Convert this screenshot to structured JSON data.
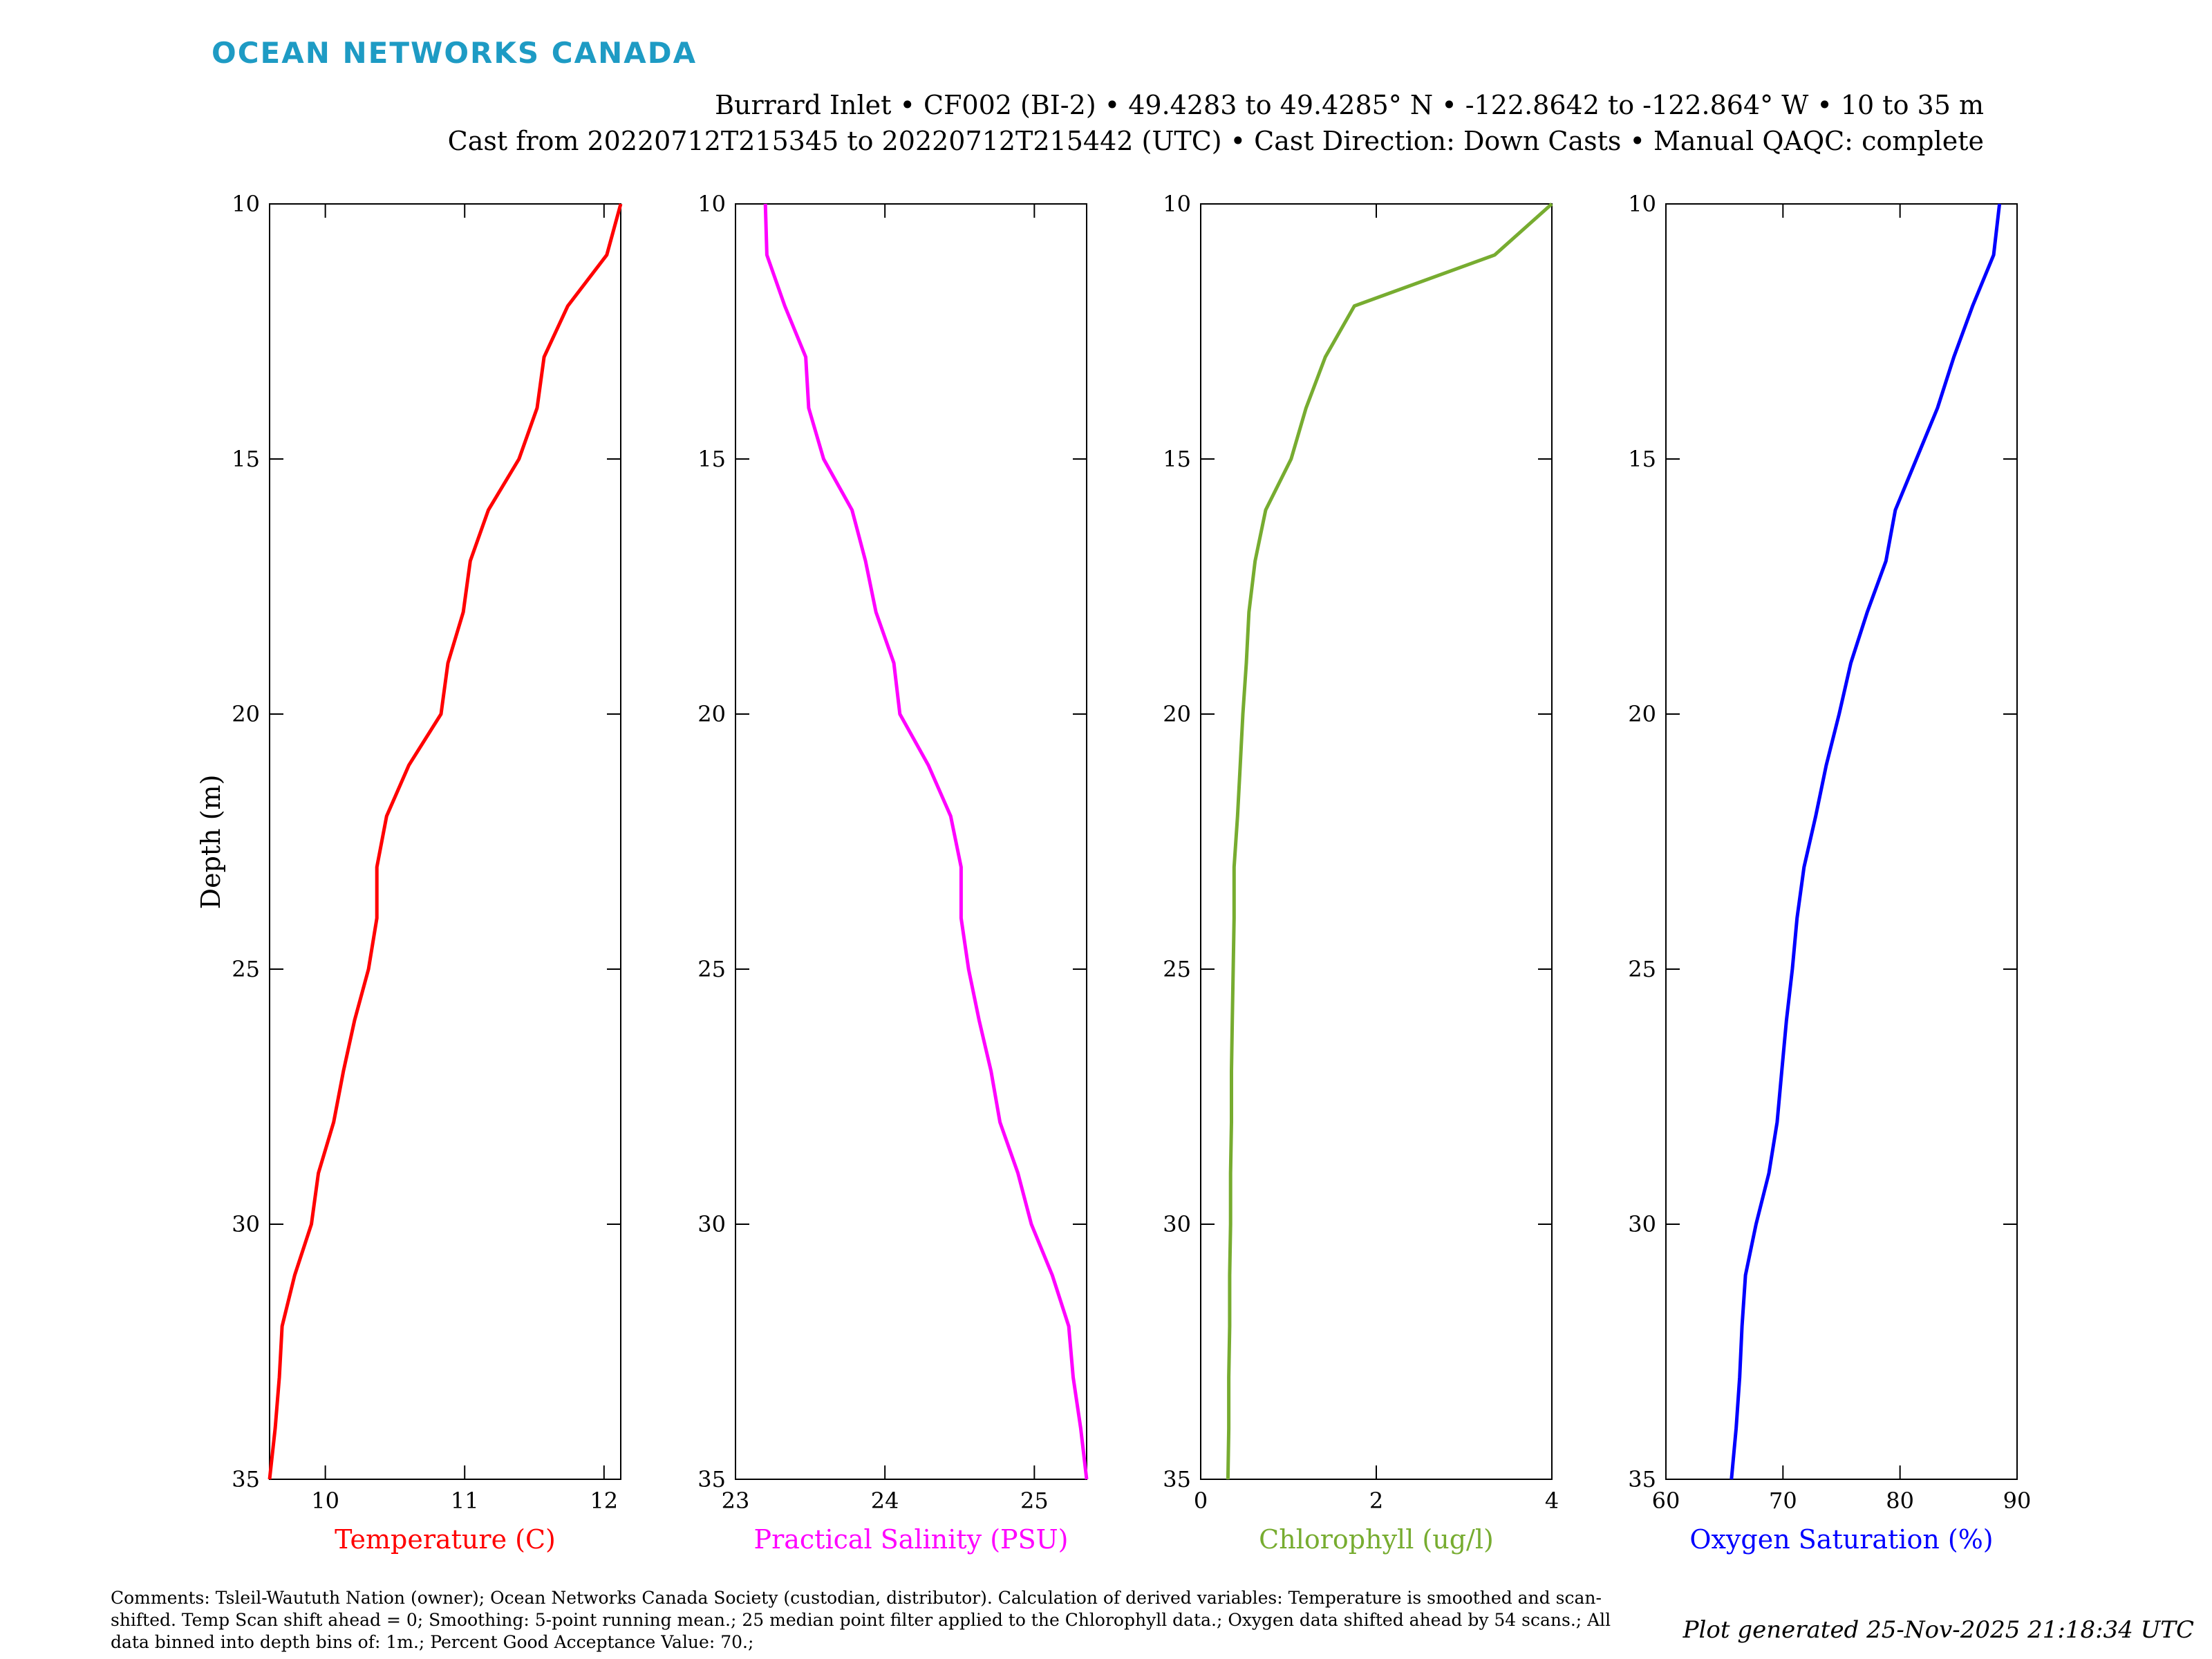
{
  "brand": {
    "name": "OCEAN NETWORKS CANADA",
    "color": "#1e9bc4"
  },
  "header": {
    "line1": "Burrard Inlet • CF002 (BI-2) • 49.4283 to 49.4285° N • -122.8642 to -122.864° W • 10 to 35 m",
    "line2": "Cast from 20220712T215345 to 20220712T215442 (UTC) • Cast Direction: Down Casts • Manual QAQC: complete"
  },
  "ylabel": "Depth (m)",
  "chart_data": [
    {
      "type": "line",
      "xlabel": "Temperature (C)",
      "color": "#ff0000",
      "xlim": [
        9.6,
        12.12
      ],
      "ylim": [
        10,
        35
      ],
      "y_inverted": true,
      "xticks": [
        10,
        11,
        12
      ],
      "yticks": [
        10,
        15,
        20,
        25,
        30,
        35
      ],
      "depth": [
        10,
        11,
        12,
        13,
        14,
        15,
        16,
        17,
        18,
        19,
        20,
        21,
        22,
        23,
        24,
        25,
        26,
        27,
        28,
        29,
        30,
        31,
        32,
        33,
        34,
        35
      ],
      "values": [
        12.12,
        12.02,
        11.74,
        11.57,
        11.52,
        11.39,
        11.17,
        11.04,
        10.99,
        10.88,
        10.83,
        10.6,
        10.44,
        10.37,
        10.37,
        10.31,
        10.21,
        10.13,
        10.06,
        9.95,
        9.9,
        9.78,
        9.69,
        9.67,
        9.64,
        9.6
      ]
    },
    {
      "type": "line",
      "xlabel": "Practical Salinity (PSU)",
      "color": "#ff00ff",
      "xlim": [
        23,
        25.35
      ],
      "ylim": [
        10,
        35
      ],
      "y_inverted": true,
      "xticks": [
        23,
        24,
        25
      ],
      "yticks": [
        10,
        15,
        20,
        25,
        30,
        35
      ],
      "depth": [
        10,
        11,
        12,
        13,
        14,
        15,
        16,
        17,
        18,
        19,
        20,
        21,
        22,
        23,
        24,
        25,
        26,
        27,
        28,
        29,
        30,
        31,
        32,
        33,
        34,
        35
      ],
      "values": [
        23.2,
        23.21,
        23.33,
        23.47,
        23.49,
        23.59,
        23.78,
        23.87,
        23.94,
        24.06,
        24.1,
        24.29,
        24.44,
        24.51,
        24.51,
        24.56,
        24.63,
        24.71,
        24.77,
        24.89,
        24.98,
        25.12,
        25.23,
        25.26,
        25.31,
        25.35
      ]
    },
    {
      "type": "line",
      "xlabel": "Chlorophyll (ug/l)",
      "color": "#77ac30",
      "xlim": [
        0,
        4
      ],
      "ylim": [
        10,
        35
      ],
      "y_inverted": true,
      "xticks": [
        0,
        2,
        4
      ],
      "yticks": [
        10,
        15,
        20,
        25,
        30,
        35
      ],
      "depth": [
        10,
        11,
        12,
        13,
        14,
        15,
        16,
        17,
        18,
        19,
        20,
        21,
        22,
        23,
        24,
        25,
        26,
        27,
        28,
        29,
        30,
        31,
        32,
        33,
        34,
        35
      ],
      "values": [
        4.0,
        3.35,
        1.75,
        1.42,
        1.2,
        1.03,
        0.74,
        0.62,
        0.55,
        0.52,
        0.48,
        0.45,
        0.42,
        0.38,
        0.38,
        0.37,
        0.36,
        0.35,
        0.35,
        0.34,
        0.34,
        0.33,
        0.33,
        0.32,
        0.32,
        0.31
      ]
    },
    {
      "type": "line",
      "xlabel": "Oxygen Saturation (%)",
      "color": "#0000ff",
      "xlim": [
        60,
        90
      ],
      "ylim": [
        10,
        35
      ],
      "y_inverted": true,
      "xticks": [
        60,
        70,
        80,
        90
      ],
      "yticks": [
        10,
        15,
        20,
        25,
        30,
        35
      ],
      "depth": [
        10,
        11,
        12,
        13,
        14,
        15,
        16,
        17,
        18,
        19,
        20,
        21,
        22,
        23,
        24,
        25,
        26,
        27,
        28,
        29,
        30,
        31,
        32,
        33,
        34,
        35
      ],
      "values": [
        88.5,
        88.0,
        86.2,
        84.6,
        83.2,
        81.4,
        79.6,
        78.8,
        77.2,
        75.8,
        74.8,
        73.7,
        72.8,
        71.8,
        71.2,
        70.8,
        70.3,
        69.9,
        69.5,
        68.8,
        67.7,
        66.8,
        66.5,
        66.3,
        66.0,
        65.6
      ]
    }
  ],
  "comments": "Comments: Tsleil-Waututh Nation (owner); Ocean Networks Canada Society (custodian, distributor). Calculation of derived variables: Temperature is smoothed and scan-shifted. Temp Scan shift ahead = 0; Smoothing: 5-point running mean.; 25 median point filter applied to the Chlorophyll data.; Oxygen data shifted ahead by 54 scans.; All data binned into depth bins of: 1m.; Percent Good Acceptance Value: 70.;",
  "generated": "Plot generated 25-Nov-2025 21:18:34 UTC"
}
